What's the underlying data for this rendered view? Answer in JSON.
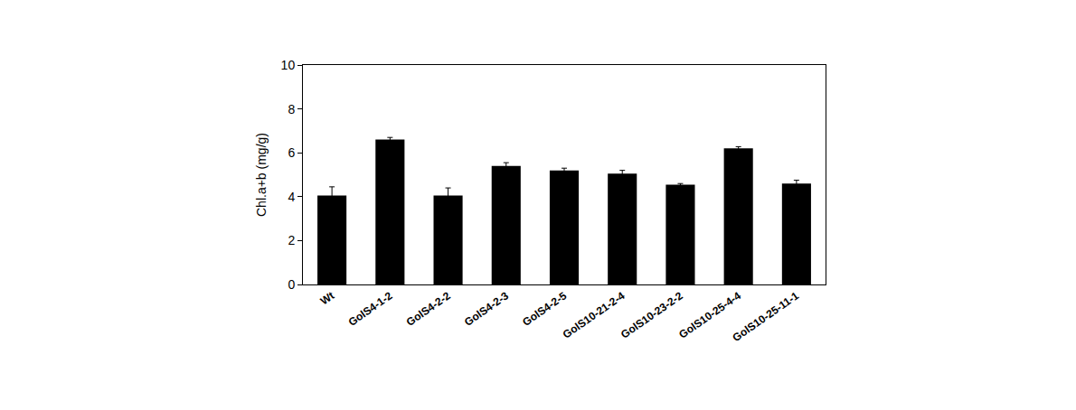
{
  "chart_data": {
    "type": "bar",
    "y_label": "Chl.a+b (mg/g)",
    "categories": [
      "Wt",
      "GolS4-1-2",
      "GolS4-2-2",
      "GolS4-2-3",
      "GolS4-2-5",
      "GolS10-21-2-4",
      "GolS10-23-2-2",
      "GolS10-25-4-4",
      "GolS10-25-11-1"
    ],
    "values": [
      4.05,
      6.6,
      4.05,
      5.4,
      5.2,
      5.05,
      4.55,
      6.2,
      4.6
    ],
    "errors": [
      0.4,
      0.1,
      0.35,
      0.15,
      0.1,
      0.15,
      0.05,
      0.08,
      0.15
    ],
    "color": "#000000",
    "ylim": [
      0,
      10
    ],
    "yticks": [
      0,
      2,
      4,
      6,
      8,
      10
    ],
    "grid": false
  }
}
